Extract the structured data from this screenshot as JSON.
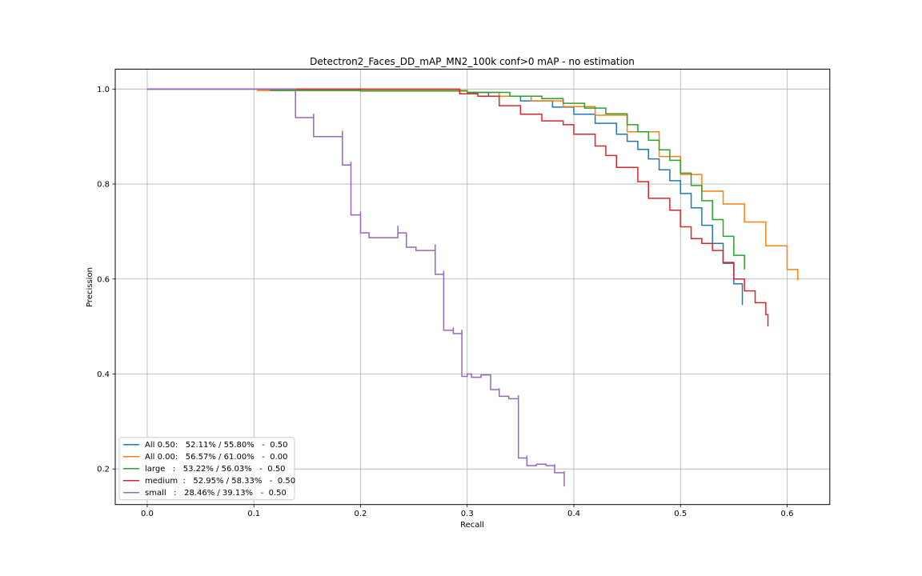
{
  "chart_data": {
    "type": "line",
    "title": "Detectron2_Faces_DD_mAP_MN2_100k  conf>0 mAP - no estimation",
    "xlabel": "Recall",
    "ylabel": "Precission",
    "xlim": [
      -0.03,
      0.64
    ],
    "ylim": [
      0.125,
      1.042
    ],
    "xticks": [
      0.0,
      0.1,
      0.2,
      0.3,
      0.4,
      0.5,
      0.6
    ],
    "xtick_labels": [
      "0.0",
      "0.1",
      "0.2",
      "0.3",
      "0.4",
      "0.5",
      "0.6"
    ],
    "yticks": [
      0.2,
      0.4,
      0.6,
      0.8,
      1.0
    ],
    "ytick_labels": [
      "0.2",
      "0.4",
      "0.6",
      "0.8",
      "1.0"
    ],
    "grid": true,
    "legend_position": "lower-left",
    "series": [
      {
        "name": "All 0.50:   52.11% / 55.80%   -  0.50",
        "color": "#1f77b4",
        "x": [
          0.0,
          0.2,
          0.3,
          0.32,
          0.35,
          0.38,
          0.4,
          0.42,
          0.44,
          0.45,
          0.46,
          0.47,
          0.48,
          0.49,
          0.5,
          0.51,
          0.52,
          0.53,
          0.54,
          0.55,
          0.558
        ],
        "y": [
          1.0,
          0.997,
          0.993,
          0.985,
          0.975,
          0.962,
          0.947,
          0.928,
          0.905,
          0.89,
          0.873,
          0.853,
          0.83,
          0.807,
          0.78,
          0.75,
          0.713,
          0.675,
          0.633,
          0.59,
          0.545
        ]
      },
      {
        "name": "All 0.00:   56.57% / 61.00%   -  0.00",
        "color": "#ff7f0e",
        "x": [
          0.103,
          0.2,
          0.3,
          0.33,
          0.36,
          0.39,
          0.42,
          0.45,
          0.48,
          0.5,
          0.52,
          0.54,
          0.56,
          0.58,
          0.6,
          0.61
        ],
        "y": [
          0.997,
          0.997,
          0.993,
          0.985,
          0.975,
          0.963,
          0.945,
          0.91,
          0.858,
          0.82,
          0.785,
          0.758,
          0.72,
          0.67,
          0.62,
          0.597
        ]
      },
      {
        "name": "large   :   53.22% / 56.03%   -  0.50",
        "color": "#2ca02c",
        "x": [
          0.115,
          0.2,
          0.3,
          0.34,
          0.37,
          0.39,
          0.41,
          0.43,
          0.45,
          0.46,
          0.47,
          0.48,
          0.49,
          0.5,
          0.51,
          0.52,
          0.53,
          0.54,
          0.55,
          0.56
        ],
        "y": [
          0.997,
          0.996,
          0.993,
          0.985,
          0.98,
          0.97,
          0.96,
          0.948,
          0.925,
          0.91,
          0.892,
          0.872,
          0.85,
          0.823,
          0.797,
          0.765,
          0.725,
          0.69,
          0.65,
          0.62
        ]
      },
      {
        "name": "medium  :   52.95% / 58.33%   -  0.50",
        "color": "#d62728",
        "x": [
          0.0,
          0.29,
          0.293,
          0.31,
          0.33,
          0.35,
          0.37,
          0.39,
          0.4,
          0.42,
          0.43,
          0.44,
          0.46,
          0.47,
          0.49,
          0.5,
          0.51,
          0.52,
          0.53,
          0.54,
          0.55,
          0.56,
          0.57,
          0.58,
          0.582
        ],
        "y": [
          1.0,
          1.0,
          0.99,
          0.985,
          0.965,
          0.947,
          0.933,
          0.925,
          0.905,
          0.88,
          0.86,
          0.835,
          0.805,
          0.77,
          0.745,
          0.71,
          0.685,
          0.675,
          0.66,
          0.635,
          0.6,
          0.575,
          0.55,
          0.525,
          0.5
        ]
      },
      {
        "name": "small   :   28.46% / 39.13%   -  0.50",
        "color": "#9467bd",
        "x": [
          0.0,
          0.139,
          0.139,
          0.156,
          0.156,
          0.183,
          0.183,
          0.191,
          0.191,
          0.2,
          0.2,
          0.208,
          0.235,
          0.235,
          0.243,
          0.243,
          0.252,
          0.27,
          0.27,
          0.278,
          0.278,
          0.287,
          0.287,
          0.295,
          0.295,
          0.3,
          0.304,
          0.313,
          0.322,
          0.322,
          0.33,
          0.33,
          0.339,
          0.348,
          0.348,
          0.356,
          0.356,
          0.365,
          0.374,
          0.382,
          0.382,
          0.391,
          0.391
        ],
        "y": [
          1.0,
          1.0,
          0.94,
          0.948,
          0.9,
          0.912,
          0.84,
          0.847,
          0.735,
          0.742,
          0.697,
          0.687,
          0.712,
          0.697,
          0.69,
          0.667,
          0.66,
          0.673,
          0.61,
          0.617,
          0.492,
          0.498,
          0.485,
          0.493,
          0.395,
          0.4,
          0.393,
          0.398,
          0.393,
          0.367,
          0.37,
          0.353,
          0.348,
          0.355,
          0.223,
          0.228,
          0.207,
          0.21,
          0.207,
          0.21,
          0.192,
          0.195,
          0.163
        ]
      }
    ]
  }
}
